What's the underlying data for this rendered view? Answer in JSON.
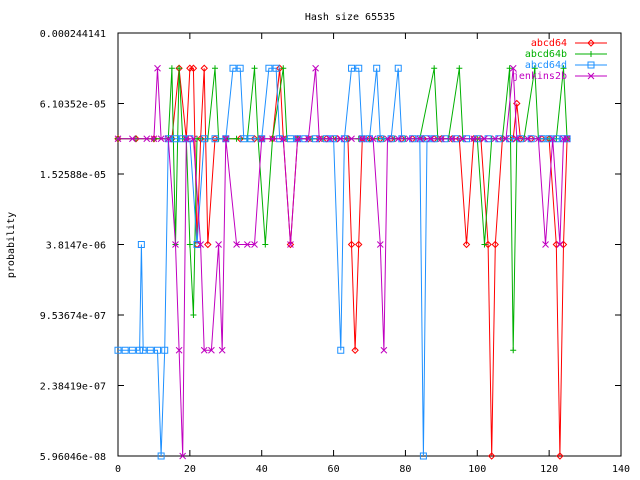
{
  "chart_data": {
    "type": "line",
    "title": "Hash size 65535",
    "xlabel": "",
    "ylabel": "probability",
    "xlim": [
      0,
      140
    ],
    "ylog": true,
    "ylim": [
      5.96046e-08,
      0.000244141
    ],
    "x_ticks": [
      0,
      20,
      40,
      60,
      80,
      100,
      120,
      140
    ],
    "x_tick_labels": [
      "0",
      "20",
      "40",
      "60",
      "80",
      "100",
      "120",
      "140"
    ],
    "y_ticks": [
      0.000244141,
      6.10352e-05,
      1.52588e-05,
      3.8147e-06,
      9.53674e-07,
      2.38419e-07,
      5.96046e-08
    ],
    "y_tick_labels": [
      "0.000244141",
      "6.10352e-05",
      "1.52588e-05",
      "3.8147e-06",
      "9.53674e-07",
      "2.38419e-07",
      "5.96046e-08"
    ],
    "grid": false,
    "legend_position": "top-right",
    "series": [
      {
        "name": "abcd64",
        "color": "#ff0000",
        "marker": "diamond",
        "points": [
          [
            0,
            3.05176e-05
          ],
          [
            5,
            3.05176e-05
          ],
          [
            10,
            3.05176e-05
          ],
          [
            15,
            3.05176e-05
          ],
          [
            17,
            0.00012207
          ],
          [
            19,
            3.05176e-05
          ],
          [
            20,
            0.00012207
          ],
          [
            21,
            0.00012207
          ],
          [
            22,
            3.8147e-06
          ],
          [
            23,
            3.05176e-05
          ],
          [
            24,
            0.00012207
          ],
          [
            25,
            3.8147e-06
          ],
          [
            27,
            3.05176e-05
          ],
          [
            30,
            3.05176e-05
          ],
          [
            34,
            3.05176e-05
          ],
          [
            38,
            3.05176e-05
          ],
          [
            40,
            3.05176e-05
          ],
          [
            43,
            3.05176e-05
          ],
          [
            45,
            0.00012207
          ],
          [
            46,
            3.05176e-05
          ],
          [
            48,
            3.8147e-06
          ],
          [
            50,
            3.05176e-05
          ],
          [
            53,
            3.05176e-05
          ],
          [
            56,
            3.05176e-05
          ],
          [
            58,
            3.05176e-05
          ],
          [
            61,
            3.05176e-05
          ],
          [
            64,
            3.05176e-05
          ],
          [
            65,
            3.8147e-06
          ],
          [
            66,
            4.76837e-07
          ],
          [
            67,
            3.8147e-06
          ],
          [
            68,
            3.05176e-05
          ],
          [
            70,
            3.05176e-05
          ],
          [
            73,
            3.05176e-05
          ],
          [
            76,
            3.05176e-05
          ],
          [
            79,
            3.05176e-05
          ],
          [
            82,
            3.05176e-05
          ],
          [
            85,
            3.05176e-05
          ],
          [
            88,
            3.05176e-05
          ],
          [
            90,
            3.05176e-05
          ],
          [
            93,
            3.05176e-05
          ],
          [
            95,
            3.05176e-05
          ],
          [
            97,
            3.8147e-06
          ],
          [
            99,
            3.05176e-05
          ],
          [
            101,
            3.05176e-05
          ],
          [
            103,
            3.8147e-06
          ],
          [
            104,
            5.96046e-08
          ],
          [
            105,
            3.8147e-06
          ],
          [
            107,
            3.05176e-05
          ],
          [
            110,
            3.05176e-05
          ],
          [
            111,
            6.10352e-05
          ],
          [
            112,
            3.05176e-05
          ],
          [
            115,
            3.05176e-05
          ],
          [
            118,
            3.05176e-05
          ],
          [
            120,
            3.05176e-05
          ],
          [
            122,
            3.8147e-06
          ],
          [
            123,
            5.96046e-08
          ],
          [
            124,
            3.8147e-06
          ],
          [
            125,
            3.05176e-05
          ]
        ]
      },
      {
        "name": "abcd64b",
        "color": "#00b000",
        "marker": "plus",
        "points": [
          [
            0,
            3.05176e-05
          ],
          [
            5,
            3.05176e-05
          ],
          [
            10,
            3.05176e-05
          ],
          [
            14,
            3.05176e-05
          ],
          [
            15,
            0.00012207
          ],
          [
            16,
            3.8147e-06
          ],
          [
            17,
            0.00012207
          ],
          [
            18,
            3.05176e-05
          ],
          [
            19,
            3.05176e-05
          ],
          [
            20,
            3.8147e-06
          ],
          [
            21,
            9.53674e-07
          ],
          [
            22,
            3.05176e-05
          ],
          [
            25,
            3.05176e-05
          ],
          [
            27,
            0.00012207
          ],
          [
            28,
            3.05176e-05
          ],
          [
            30,
            3.05176e-05
          ],
          [
            33,
            3.05176e-05
          ],
          [
            36,
            3.05176e-05
          ],
          [
            38,
            0.00012207
          ],
          [
            39,
            3.05176e-05
          ],
          [
            41,
            3.8147e-06
          ],
          [
            43,
            3.05176e-05
          ],
          [
            46,
            0.00012207
          ],
          [
            47,
            3.05176e-05
          ],
          [
            50,
            3.05176e-05
          ],
          [
            54,
            3.05176e-05
          ],
          [
            57,
            3.05176e-05
          ],
          [
            60,
            3.05176e-05
          ],
          [
            64,
            3.05176e-05
          ],
          [
            67,
            3.05176e-05
          ],
          [
            70,
            3.05176e-05
          ],
          [
            74,
            3.05176e-05
          ],
          [
            77,
            3.05176e-05
          ],
          [
            80,
            3.05176e-05
          ],
          [
            84,
            3.05176e-05
          ],
          [
            88,
            0.00012207
          ],
          [
            89,
            3.05176e-05
          ],
          [
            92,
            3.05176e-05
          ],
          [
            95,
            0.00012207
          ],
          [
            96,
            3.05176e-05
          ],
          [
            100,
            3.05176e-05
          ],
          [
            102,
            3.8147e-06
          ],
          [
            104,
            3.05176e-05
          ],
          [
            107,
            3.05176e-05
          ],
          [
            109,
            0.00012207
          ],
          [
            110,
            4.76837e-07
          ],
          [
            111,
            3.05176e-05
          ],
          [
            113,
            3.05176e-05
          ],
          [
            116,
            0.00012207
          ],
          [
            117,
            3.05176e-05
          ],
          [
            120,
            3.05176e-05
          ],
          [
            122,
            3.05176e-05
          ],
          [
            124,
            0.00012207
          ],
          [
            125,
            3.05176e-05
          ]
        ]
      },
      {
        "name": "abcd64d",
        "color": "#1e90ff",
        "marker": "square",
        "points": [
          [
            0,
            4.76837e-07
          ],
          [
            2,
            4.76837e-07
          ],
          [
            4,
            4.76837e-07
          ],
          [
            6,
            4.76837e-07
          ],
          [
            6.5,
            3.8147e-06
          ],
          [
            7,
            4.76837e-07
          ],
          [
            9,
            4.76837e-07
          ],
          [
            11,
            4.76837e-07
          ],
          [
            12,
            5.96046e-08
          ],
          [
            13,
            4.76837e-07
          ],
          [
            14,
            3.05176e-05
          ],
          [
            16,
            3.05176e-05
          ],
          [
            18,
            3.05176e-05
          ],
          [
            20,
            3.05176e-05
          ],
          [
            22,
            3.8147e-06
          ],
          [
            24,
            3.05176e-05
          ],
          [
            27,
            3.05176e-05
          ],
          [
            30,
            3.05176e-05
          ],
          [
            32,
            0.00012207
          ],
          [
            34,
            0.00012207
          ],
          [
            35,
            3.05176e-05
          ],
          [
            37,
            3.05176e-05
          ],
          [
            40,
            3.05176e-05
          ],
          [
            42,
            0.00012207
          ],
          [
            44,
            0.00012207
          ],
          [
            45,
            3.05176e-05
          ],
          [
            48,
            3.05176e-05
          ],
          [
            50,
            3.05176e-05
          ],
          [
            52,
            3.05176e-05
          ],
          [
            55,
            3.05176e-05
          ],
          [
            58,
            3.05176e-05
          ],
          [
            60,
            3.05176e-05
          ],
          [
            62,
            4.76837e-07
          ],
          [
            63,
            3.05176e-05
          ],
          [
            65,
            0.00012207
          ],
          [
            67,
            0.00012207
          ],
          [
            68,
            3.05176e-05
          ],
          [
            70,
            3.05176e-05
          ],
          [
            72,
            0.00012207
          ],
          [
            73,
            3.05176e-05
          ],
          [
            76,
            3.05176e-05
          ],
          [
            78,
            0.00012207
          ],
          [
            79,
            3.05176e-05
          ],
          [
            82,
            3.05176e-05
          ],
          [
            84,
            3.05176e-05
          ],
          [
            85,
            5.96046e-08
          ],
          [
            86,
            3.05176e-05
          ],
          [
            88,
            3.05176e-05
          ],
          [
            91,
            3.05176e-05
          ],
          [
            94,
            3.05176e-05
          ],
          [
            97,
            3.05176e-05
          ],
          [
            100,
            3.05176e-05
          ],
          [
            103,
            3.05176e-05
          ],
          [
            106,
            3.05176e-05
          ],
          [
            109,
            3.05176e-05
          ],
          [
            112,
            3.05176e-05
          ],
          [
            115,
            3.05176e-05
          ],
          [
            118,
            3.05176e-05
          ],
          [
            120,
            3.05176e-05
          ],
          [
            122,
            3.05176e-05
          ],
          [
            124,
            3.05176e-05
          ],
          [
            125,
            3.05176e-05
          ]
        ]
      },
      {
        "name": "jenkins2b",
        "color": "#c000c0",
        "marker": "cross",
        "points": [
          [
            0,
            3.05176e-05
          ],
          [
            4,
            3.05176e-05
          ],
          [
            8,
            3.05176e-05
          ],
          [
            10,
            3.05176e-05
          ],
          [
            11,
            0.00012207
          ],
          [
            12,
            3.05176e-05
          ],
          [
            14,
            3.05176e-05
          ],
          [
            16,
            3.8147e-06
          ],
          [
            17,
            4.76837e-07
          ],
          [
            18,
            5.96046e-08
          ],
          [
            19,
            3.05176e-05
          ],
          [
            21,
            3.05176e-05
          ],
          [
            23,
            3.8147e-06
          ],
          [
            24,
            4.76837e-07
          ],
          [
            26,
            4.76837e-07
          ],
          [
            28,
            3.8147e-06
          ],
          [
            29,
            4.76837e-07
          ],
          [
            30,
            3.05176e-05
          ],
          [
            33,
            3.8147e-06
          ],
          [
            36,
            3.8147e-06
          ],
          [
            38,
            3.8147e-06
          ],
          [
            40,
            3.05176e-05
          ],
          [
            43,
            3.05176e-05
          ],
          [
            46,
            3.05176e-05
          ],
          [
            48,
            3.8147e-06
          ],
          [
            50,
            3.05176e-05
          ],
          [
            53,
            3.05176e-05
          ],
          [
            55,
            0.00012207
          ],
          [
            56,
            3.05176e-05
          ],
          [
            59,
            3.05176e-05
          ],
          [
            62,
            3.05176e-05
          ],
          [
            65,
            3.05176e-05
          ],
          [
            68,
            3.05176e-05
          ],
          [
            71,
            3.05176e-05
          ],
          [
            73,
            3.8147e-06
          ],
          [
            74,
            4.76837e-07
          ],
          [
            75,
            3.05176e-05
          ],
          [
            78,
            3.05176e-05
          ],
          [
            81,
            3.05176e-05
          ],
          [
            84,
            3.05176e-05
          ],
          [
            87,
            3.05176e-05
          ],
          [
            90,
            3.05176e-05
          ],
          [
            93,
            3.05176e-05
          ],
          [
            96,
            3.05176e-05
          ],
          [
            99,
            3.05176e-05
          ],
          [
            102,
            3.05176e-05
          ],
          [
            105,
            3.05176e-05
          ],
          [
            108,
            3.05176e-05
          ],
          [
            110,
            0.00012207
          ],
          [
            111,
            3.05176e-05
          ],
          [
            114,
            3.05176e-05
          ],
          [
            117,
            3.05176e-05
          ],
          [
            119,
            3.8147e-06
          ],
          [
            121,
            3.05176e-05
          ],
          [
            123,
            3.8147e-06
          ],
          [
            124,
            3.05176e-05
          ],
          [
            125,
            3.05176e-05
          ]
        ]
      }
    ]
  }
}
